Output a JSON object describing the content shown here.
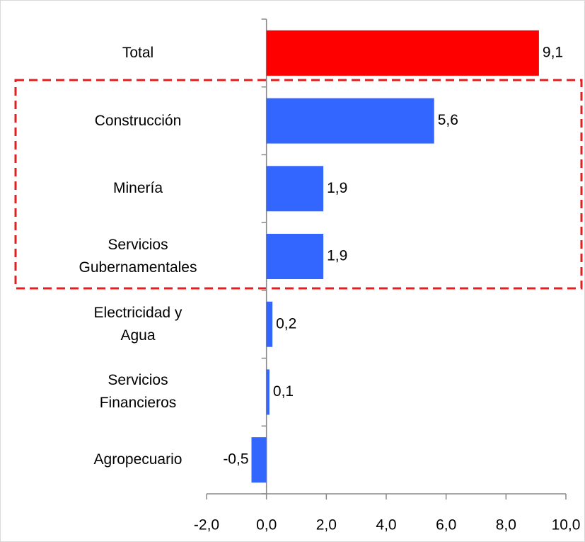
{
  "chart_data": {
    "type": "bar",
    "orientation": "horizontal",
    "categories": [
      "Total",
      "Construcción",
      "Minería",
      "Servicios\nGubernamentales",
      "Electricidad y\nAgua",
      "Servicios\nFinancieros",
      "Agropecuario"
    ],
    "values": [
      9.1,
      5.6,
      1.9,
      1.9,
      0.2,
      0.1,
      -0.5
    ],
    "value_labels": [
      "9,1",
      "5,6",
      "1,9",
      "1,9",
      "0,2",
      "0,1",
      "-0,5"
    ],
    "colors": [
      "#ff0000",
      "#3366ff",
      "#3366ff",
      "#3366ff",
      "#3366ff",
      "#3366ff",
      "#3366ff"
    ],
    "xlim": [
      -2,
      10
    ],
    "xticks": [
      {
        "value": -2,
        "label": "-2,0"
      },
      {
        "value": 0,
        "label": "0,0"
      },
      {
        "value": 2,
        "label": "2,0"
      },
      {
        "value": 4,
        "label": "4,0"
      },
      {
        "value": 6,
        "label": "6,0"
      },
      {
        "value": 8,
        "label": "8,0"
      },
      {
        "value": 10,
        "label": "10,0"
      }
    ],
    "grid": false
  }
}
